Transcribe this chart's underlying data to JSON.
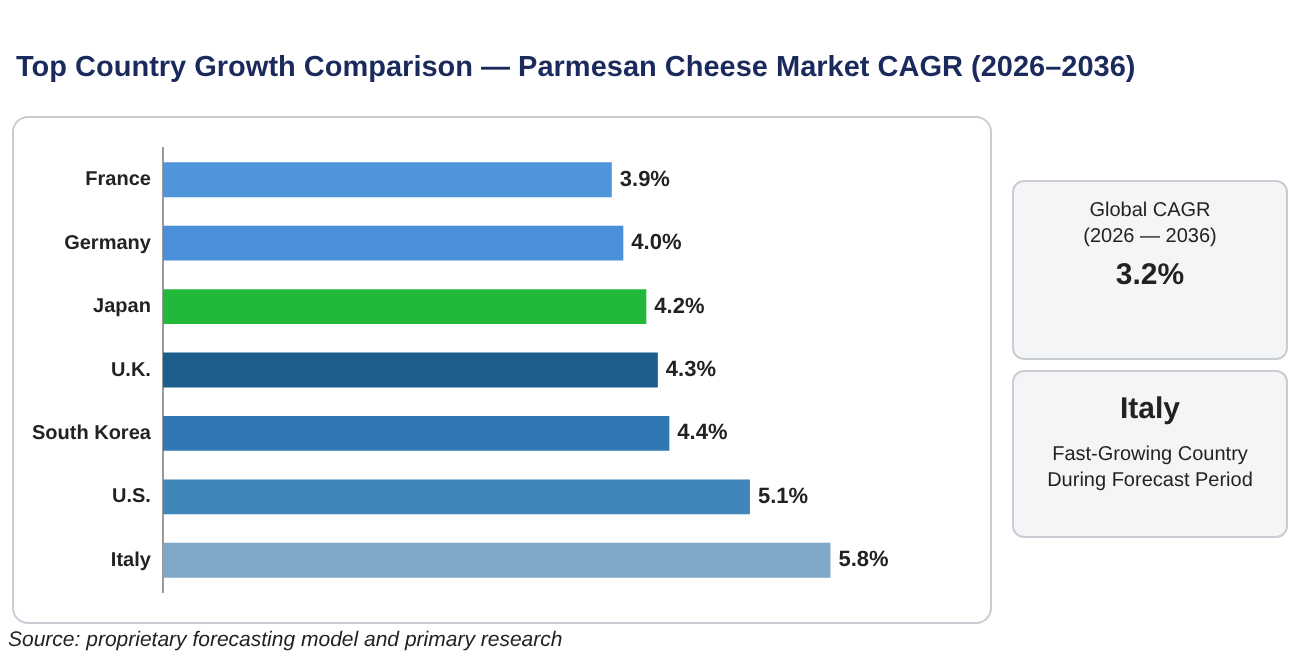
{
  "chart_data": {
    "type": "bar",
    "orientation": "horizontal",
    "title": "Top Country Growth Comparison — Parmesan Cheese Market CAGR (2026–2036)",
    "categories": [
      "France",
      "Germany",
      "Japan",
      "U.K.",
      "South Korea",
      "U.S.",
      "Italy"
    ],
    "values": [
      3.9,
      4.0,
      4.2,
      4.3,
      4.4,
      5.1,
      5.8
    ],
    "colors": [
      "#4f95d9",
      "#4a90d8",
      "#22b83a",
      "#1d5e8c",
      "#2f78b4",
      "#3f86bb",
      "#7fa8c8"
    ],
    "value_labels": [
      "3.9%",
      "4.0%",
      "4.2%",
      "4.3%",
      "4.4%",
      "5.1%",
      "5.8%"
    ],
    "legend": false,
    "annotations": [
      "Source: proprietary forecasting model and primary research",
      "Global CAGR\n(2026 — 2036)",
      "3.2%",
      "Italy",
      "Fast-Growing Country\nDuring Forecast Period"
    ]
  }
}
